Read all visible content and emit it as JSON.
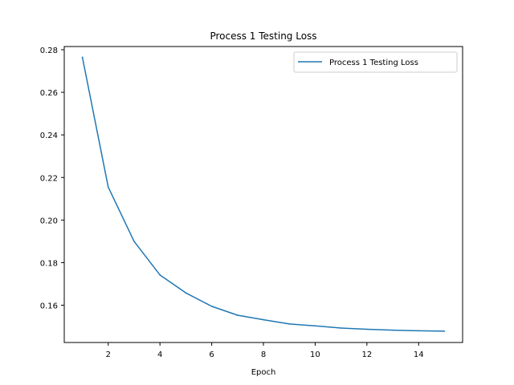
{
  "chart_data": {
    "type": "line",
    "title": "Process 1 Testing Loss",
    "xlabel": "Epoch",
    "ylabel": "",
    "xlim": [
      0.3,
      15.7
    ],
    "ylim": [
      0.1425,
      0.2815
    ],
    "xticks": [
      2,
      4,
      6,
      8,
      10,
      12,
      14
    ],
    "yticks": [
      0.16,
      0.18,
      0.2,
      0.22,
      0.24,
      0.26,
      0.28
    ],
    "ytick_labels": [
      "0.16",
      "0.18",
      "0.20",
      "0.22",
      "0.24",
      "0.26",
      "0.28"
    ],
    "grid": false,
    "legend_position": "top-right",
    "series": [
      {
        "name": "Process 1 Testing Loss",
        "color": "#1f77b4",
        "x": [
          1,
          2,
          3,
          4,
          5,
          6,
          7,
          8,
          9,
          10,
          11,
          12,
          13,
          14,
          15
        ],
        "y": [
          0.2765,
          0.2155,
          0.19,
          0.1742,
          0.1658,
          0.1595,
          0.1553,
          0.1532,
          0.1512,
          0.1503,
          0.1493,
          0.1487,
          0.1483,
          0.148,
          0.1478
        ]
      }
    ]
  }
}
